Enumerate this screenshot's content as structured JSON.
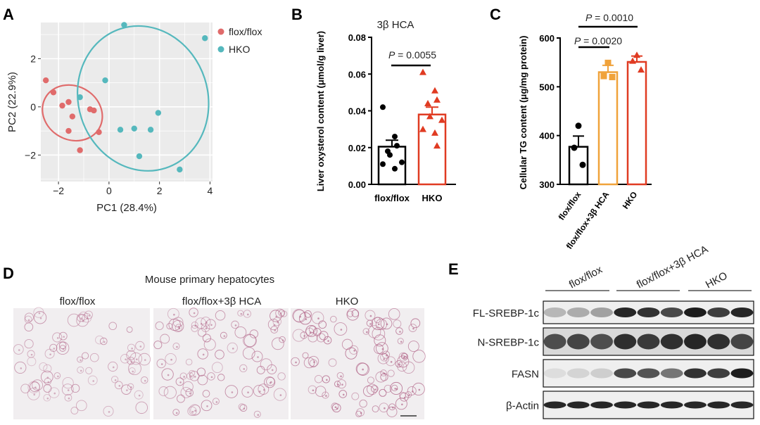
{
  "panels": [
    "A",
    "B",
    "C",
    "D",
    "E"
  ],
  "colors": {
    "floxflox": "#e06b6b",
    "hko": "#55b8bd",
    "black": "#000000",
    "orange": "#f0a23a",
    "red": "#e03b22",
    "stain": "#b46a8c"
  },
  "panelA": {
    "legend": [
      "flox/flox",
      "HKO"
    ],
    "chart_data": {
      "type": "scatter",
      "xlabel": "PC1 (28.4%)",
      "ylabel": "PC2 (22.9%)",
      "xlim": [
        -2.7,
        4.1
      ],
      "ylim": [
        -3.1,
        3.5
      ],
      "xticks": [
        "−2",
        "0",
        "2",
        "4"
      ],
      "yticks": [
        "−2",
        "0",
        "2"
      ],
      "grid": true,
      "legend_position": "right",
      "series": [
        {
          "name": "flox/flox",
          "points": [
            [
              -2.5,
              1.1
            ],
            [
              -2.2,
              0.6
            ],
            [
              -1.6,
              0.2
            ],
            [
              -1.85,
              0.05
            ],
            [
              -0.75,
              -0.1
            ],
            [
              -0.6,
              -0.15
            ],
            [
              -1.6,
              -1.0
            ],
            [
              -0.4,
              -1.05
            ],
            [
              -1.15,
              -1.8
            ],
            [
              -1.45,
              -0.4
            ]
          ]
        },
        {
          "name": "HKO",
          "points": [
            [
              0.6,
              3.4
            ],
            [
              3.8,
              2.85
            ],
            [
              -0.15,
              1.1
            ],
            [
              1.0,
              -0.9
            ],
            [
              0.45,
              -0.95
            ],
            [
              1.65,
              -0.95
            ],
            [
              1.95,
              -0.25
            ],
            [
              1.2,
              -2.05
            ],
            [
              2.8,
              -2.6
            ],
            [
              -1.15,
              0.4
            ]
          ]
        }
      ]
    }
  },
  "panelB": {
    "chart_data": {
      "type": "bar",
      "title": "3β HCA",
      "ylabel": "Liver oxysterol content (μmol/g liver)",
      "ylim": [
        0,
        0.08
      ],
      "yticks": [
        "0.00",
        "0.02",
        "0.04",
        "0.06",
        "0.08"
      ],
      "categories": [
        "flox/flox",
        "HKO"
      ],
      "means": [
        0.0205,
        0.038
      ],
      "sem": [
        0.0035,
        0.004
      ],
      "points": [
        [
          0.042,
          0.026,
          0.021,
          0.018,
          0.016,
          0.012,
          0.011,
          0.0085
        ],
        [
          0.061,
          0.051,
          0.046,
          0.044,
          0.037,
          0.035,
          0.03,
          0.028,
          0.021
        ]
      ],
      "pvalue_label": "= 0.0055"
    }
  },
  "panelC": {
    "chart_data": {
      "type": "bar",
      "ylabel": "Cellular TG content (μg/mg protein)",
      "ylim": [
        300,
        600
      ],
      "yticks": [
        "300",
        "400",
        "500",
        "600"
      ],
      "categories": [
        "flox/flox",
        "flox/flox+3β HCA",
        "HKO"
      ],
      "means": [
        377,
        530,
        551
      ],
      "sem": [
        22,
        14,
        12
      ],
      "points": [
        [
          420,
          375,
          340
        ],
        [
          549,
          522,
          520
        ],
        [
          565,
          553,
          535
        ]
      ],
      "pvalue_labels": [
        "= 0.0020",
        "= 0.0010"
      ]
    }
  },
  "panelD": {
    "title": "Mouse primary hepatocytes",
    "images": [
      "flox/flox",
      "flox/flox+3β  HCA",
      "HKO"
    ]
  },
  "panelE": {
    "groups": [
      "flox/flox",
      "flox/flox+3β HCA",
      "HKO"
    ],
    "blots": [
      {
        "label": "FL-SREBP-1c",
        "intensity": [
          0.25,
          0.3,
          0.35,
          0.9,
          0.85,
          0.75,
          0.95,
          0.8,
          0.9
        ]
      },
      {
        "label": "N-SREBP-1c",
        "intensity": [
          0.7,
          0.75,
          0.7,
          0.85,
          0.8,
          0.85,
          0.9,
          0.85,
          0.75
        ]
      },
      {
        "label": "FASN",
        "intensity": [
          0.08,
          0.12,
          0.15,
          0.75,
          0.7,
          0.55,
          0.85,
          0.8,
          0.95
        ]
      },
      {
        "label": "β-Actin",
        "intensity": [
          0.9,
          0.9,
          0.9,
          0.9,
          0.9,
          0.9,
          0.9,
          0.9,
          0.9
        ]
      }
    ]
  }
}
